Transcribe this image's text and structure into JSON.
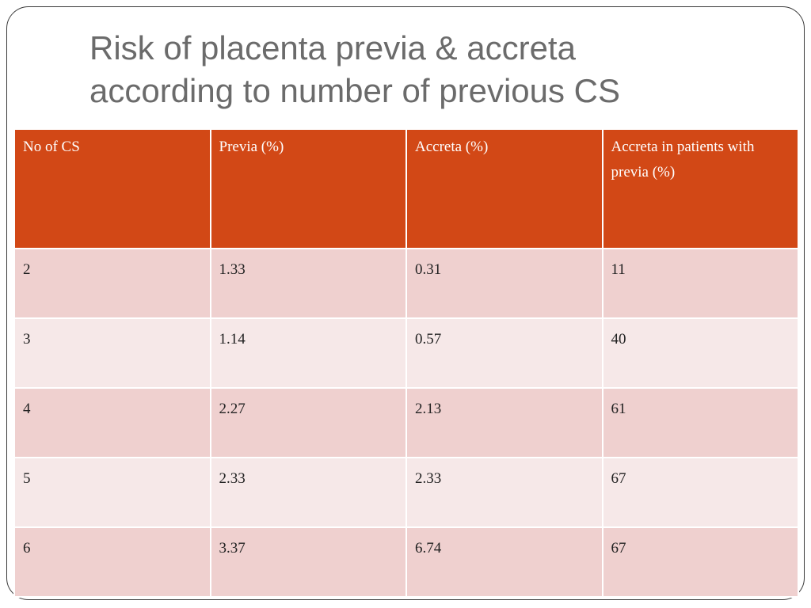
{
  "slide": {
    "title_line1": "Risk of placenta previa & accreta",
    "title_line2": "according to number of previous CS"
  },
  "table": {
    "headers": [
      "No of CS",
      "Previa (%)",
      "Accreta (%)",
      "Accreta in patients with previa (%)"
    ],
    "rows": [
      [
        "2",
        "1.33",
        "0.31",
        "11"
      ],
      [
        "3",
        "1.14",
        "0.57",
        "40"
      ],
      [
        "4",
        "2.27",
        "2.13",
        "61"
      ],
      [
        "5",
        "2.33",
        "2.33",
        "67"
      ],
      [
        "6",
        "3.37",
        "6.74",
        "67"
      ]
    ]
  },
  "colors": {
    "header_bg": "#d24816",
    "row_odd_bg": "#efd0cf",
    "row_even_bg": "#f6e8e8",
    "title_text": "#6b6b6b"
  }
}
